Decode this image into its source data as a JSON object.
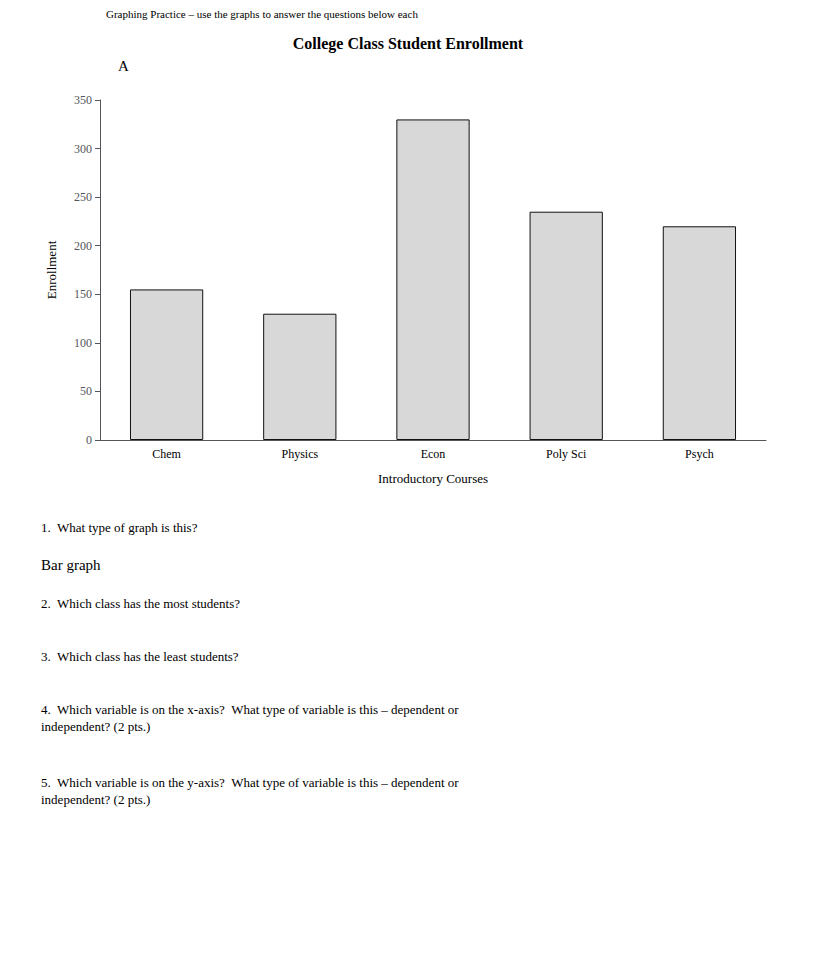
{
  "chart_data": {
    "type": "bar",
    "title": "College Class Student Enrollment",
    "annotations": [
      "Graphing Practice – use the graphs to answer the questions below each",
      "A",
      "1.  What type of graph is this?",
      "Bar graph",
      "2.  Which class has the most students?",
      "3.  Which class has the least students?",
      "4.  Which variable is on the x-axis?  What type of variable is this – dependent or\nindependent? (2 pts.)",
      "5.  Which variable is on the y-axis?  What type of variable is this – dependent or\nindependent? (2 pts.)"
    ],
    "categories": [
      "Chem",
      "Physics",
      "Econ",
      "Poly Sci",
      "Psych"
    ],
    "values": [
      155,
      130,
      330,
      235,
      220
    ],
    "color": "#d8d8d8",
    "xlabel": "Introductory Courses",
    "ylabel": "Enrollment",
    "ylim": [
      0,
      350
    ],
    "yticks": [
      0,
      50,
      100,
      150,
      200,
      250,
      300,
      350
    ],
    "grid": false
  }
}
